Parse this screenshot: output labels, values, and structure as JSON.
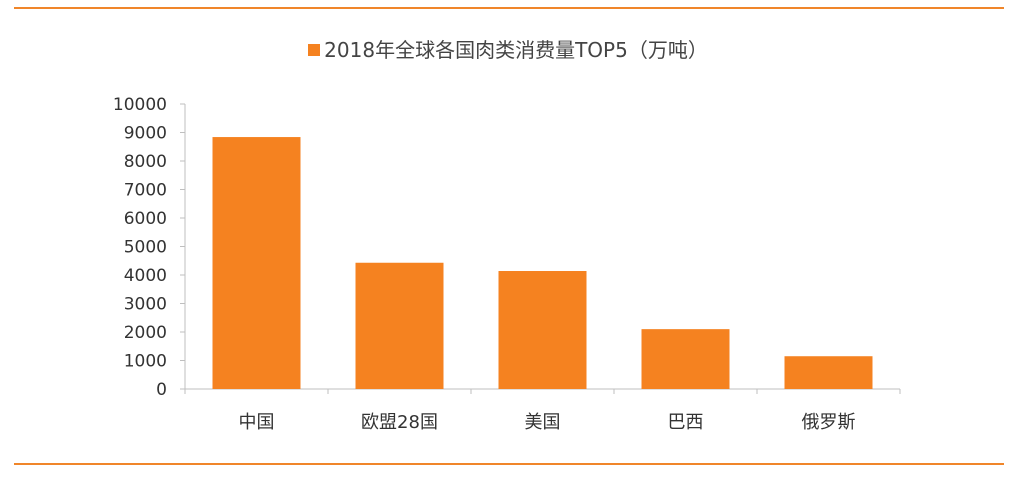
{
  "colors": {
    "accent": "#F0862A",
    "bar": "#F58220",
    "axis": "#BFBFBF",
    "text": "#333333"
  },
  "legend": {
    "label": "2018年全球各国肉类消费量TOP5（万吨）"
  },
  "chart_data": {
    "type": "bar",
    "categories": [
      "中国",
      "欧盟28国",
      "美国",
      "巴西",
      "俄罗斯"
    ],
    "series": [
      {
        "name": "2018年全球各国肉类消费量TOP5（万吨）",
        "values": [
          8840,
          4430,
          4140,
          2100,
          1150
        ]
      }
    ],
    "ylim": [
      0,
      10000
    ],
    "yticks": [
      0,
      1000,
      2000,
      3000,
      4000,
      5000,
      6000,
      7000,
      8000,
      9000,
      10000
    ],
    "grid": false,
    "legend_position": "top"
  }
}
